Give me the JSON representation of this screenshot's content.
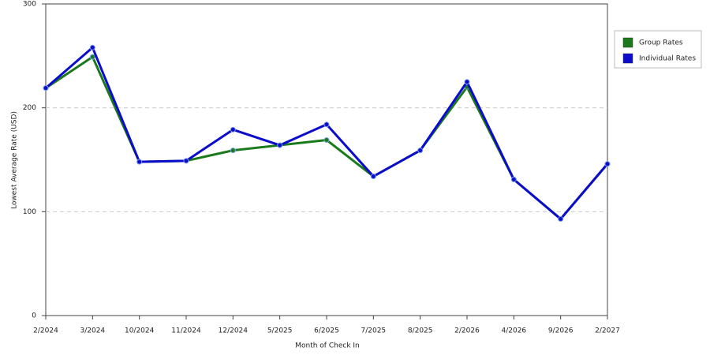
{
  "chart_data": {
    "type": "line",
    "x_label": "Month of Check In",
    "y_label": "Lowest Average Rate (USD)",
    "categories": [
      "2/2024",
      "3/2024",
      "10/2024",
      "11/2024",
      "12/2024",
      "5/2025",
      "6/2025",
      "7/2025",
      "8/2025",
      "2/2026",
      "4/2026",
      "9/2026",
      "2/2027"
    ],
    "series": [
      {
        "name": "Group Rates",
        "color": "#1b7a1b",
        "values": [
          219,
          249,
          148,
          149,
          159,
          164,
          169,
          134,
          159,
          220,
          131,
          93,
          146
        ]
      },
      {
        "name": "Individual Rates",
        "color": "#0c0ccc",
        "values": [
          219,
          258,
          148,
          149,
          179,
          164,
          184,
          134,
          159,
          225,
          131,
          93,
          146
        ]
      }
    ],
    "ylim": [
      0,
      300
    ],
    "yticks": [
      0,
      100,
      200,
      300
    ],
    "grid": true
  }
}
